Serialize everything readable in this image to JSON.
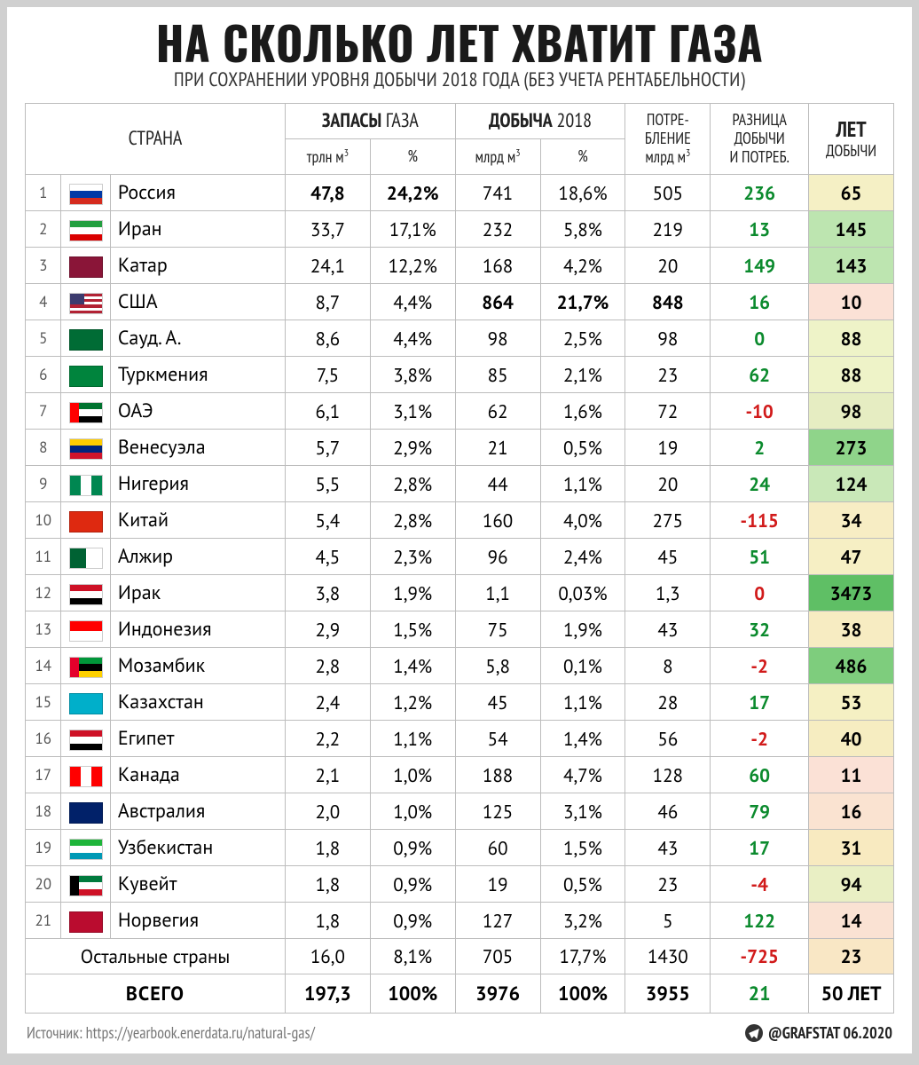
{
  "title": "НА СКОЛЬКО ЛЕТ ХВАТИТ ГАЗА",
  "subtitle": "ПРИ СОХРАНЕНИИ УРОВНЯ ДОБЫЧИ 2018 ГОДА (БЕЗ УЧЕТА РЕНТАБЕЛЬНОСТИ)",
  "header": {
    "country": "СТРАНА",
    "reserves_group": "ЗАПАСЫ",
    "reserves_group_sub": " ГАЗА",
    "reserves_vol": "трлн м",
    "reserves_pct": "%",
    "production_group": "ДОБЫЧА",
    "production_group_sub": " 2018",
    "production_vol": "млрд м",
    "production_pct": "%",
    "consumption_top": "ПОТРЕ-",
    "consumption_mid": "БЛЕНИЕ",
    "consumption_unit": "млрд м",
    "diff_top": "РАЗНИЦА",
    "diff_mid": "ДОБЫЧИ",
    "diff_bot": "И ПОТРЕБ.",
    "years_top": "ЛЕТ",
    "years_bot": "ДОБЫЧИ"
  },
  "rows": [
    {
      "n": "1",
      "country": "Россия",
      "flag": [
        "#ffffff",
        "#0039a6",
        "#d52b1e"
      ],
      "reserves": "47,8",
      "reserves_b": true,
      "reserves_pct": "24,2%",
      "reserves_pct_b": true,
      "prod": "741",
      "prod_pct": "18,6%",
      "cons": "505",
      "diff": "236",
      "diff_sign": "pos",
      "years": "65",
      "years_bg": "#f5f0c5"
    },
    {
      "n": "2",
      "country": "Иран",
      "flag": [
        "#239f40",
        "#ffffff",
        "#da0000"
      ],
      "reserves": "33,7",
      "reserves_pct": "17,1%",
      "prod": "232",
      "prod_pct": "5,8%",
      "cons": "219",
      "diff": "13",
      "diff_sign": "pos",
      "years": "145",
      "years_bg": "#bde5b0"
    },
    {
      "n": "3",
      "country": "Катар",
      "flag_solid": "#8a1538",
      "reserves": "24,1",
      "reserves_pct": "12,2%",
      "prod": "168",
      "prod_pct": "4,2%",
      "cons": "20",
      "diff": "149",
      "diff_sign": "pos",
      "years": "143",
      "years_bg": "#bde5b0"
    },
    {
      "n": "4",
      "country": "США",
      "flag_stripes": "us",
      "reserves": "8,7",
      "reserves_pct": "4,4%",
      "prod": "864",
      "prod_b": true,
      "prod_pct": "21,7%",
      "prod_pct_b": true,
      "cons": "848",
      "cons_b": true,
      "diff": "16",
      "diff_sign": "pos",
      "years": "10",
      "years_bg": "#fbe1d6"
    },
    {
      "n": "5",
      "country": "Сауд. А.",
      "flag_solid": "#006c35",
      "reserves": "8,6",
      "reserves_pct": "4,4%",
      "prod": "98",
      "prod_pct": "2,5%",
      "cons": "98",
      "diff": "0",
      "diff_sign": "pos",
      "years": "88",
      "years_bg": "#eef3c8"
    },
    {
      "n": "6",
      "country": "Туркмения",
      "flag_solid": "#00843d",
      "reserves": "7,5",
      "reserves_pct": "3,8%",
      "prod": "85",
      "prod_pct": "2,1%",
      "cons": "23",
      "diff": "62",
      "diff_sign": "pos",
      "years": "88",
      "years_bg": "#eef3c8"
    },
    {
      "n": "7",
      "country": "ОАЭ",
      "flag": [
        "#00732f",
        "#ffffff",
        "#000000"
      ],
      "flag_left": "#ff0000",
      "reserves": "6,1",
      "reserves_pct": "3,1%",
      "prod": "62",
      "prod_pct": "1,6%",
      "cons": "72",
      "diff": "-10",
      "diff_sign": "neg",
      "years": "98",
      "years_bg": "#e6edc2"
    },
    {
      "n": "8",
      "country": "Венесуэла",
      "flag": [
        "#ffcc00",
        "#00247d",
        "#cf142b"
      ],
      "reserves": "5,7",
      "reserves_pct": "2,9%",
      "prod": "21",
      "prod_pct": "0,5%",
      "cons": "19",
      "diff": "2",
      "diff_sign": "pos",
      "years": "273",
      "years_bg": "#8fd48a"
    },
    {
      "n": "9",
      "country": "Нигерия",
      "flag_v": [
        "#008751",
        "#ffffff",
        "#008751"
      ],
      "reserves": "5,5",
      "reserves_pct": "2,8%",
      "prod": "44",
      "prod_pct": "1,1%",
      "cons": "20",
      "diff": "24",
      "diff_sign": "pos",
      "years": "124",
      "years_bg": "#c9e8b8"
    },
    {
      "n": "10",
      "country": "Китай",
      "flag_solid": "#de2910",
      "reserves": "5,4",
      "reserves_pct": "2,8%",
      "prod": "160",
      "prod_pct": "4,0%",
      "cons": "275",
      "diff": "-115",
      "diff_sign": "neg",
      "years": "34",
      "years_bg": "#f7edc4"
    },
    {
      "n": "11",
      "country": "Алжир",
      "flag_v": [
        "#006233",
        "#ffffff"
      ],
      "reserves": "4,5",
      "reserves_pct": "2,3%",
      "prod": "96",
      "prod_pct": "2,4%",
      "cons": "45",
      "diff": "51",
      "diff_sign": "pos",
      "years": "47",
      "years_bg": "#f6efc4"
    },
    {
      "n": "12",
      "country": "Ирак",
      "flag": [
        "#ce1126",
        "#ffffff",
        "#000000"
      ],
      "reserves": "3,8",
      "reserves_pct": "1,9%",
      "prod": "1,1",
      "prod_pct": "0,03%",
      "cons": "1,3",
      "diff": "0",
      "diff_sign": "neg",
      "years": "3473",
      "years_bg": "#5fbf65"
    },
    {
      "n": "13",
      "country": "Индонезия",
      "flag": [
        "#ff0000",
        "#ffffff"
      ],
      "reserves": "2,9",
      "reserves_pct": "1,5%",
      "prod": "75",
      "prod_pct": "1,9%",
      "cons": "43",
      "diff": "32",
      "diff_sign": "pos",
      "years": "38",
      "years_bg": "#f7ecc2"
    },
    {
      "n": "14",
      "country": "Мозамбик",
      "flag": [
        "#009639",
        "#000000",
        "#ffd100"
      ],
      "flag_left": "#e4002b",
      "reserves": "2,8",
      "reserves_pct": "1,4%",
      "prod": "5,8",
      "prod_pct": "0,1%",
      "cons": "8",
      "diff": "-2",
      "diff_sign": "neg",
      "years": "486",
      "years_bg": "#7ecd7d"
    },
    {
      "n": "15",
      "country": "Казахстан",
      "flag_solid": "#00afca",
      "reserves": "2,4",
      "reserves_pct": "1,2%",
      "prod": "45",
      "prod_pct": "1,1%",
      "cons": "28",
      "diff": "17",
      "diff_sign": "pos",
      "years": "53",
      "years_bg": "#f5f0c3"
    },
    {
      "n": "16",
      "country": "Египет",
      "flag": [
        "#ce1126",
        "#ffffff",
        "#000000"
      ],
      "reserves": "2,2",
      "reserves_pct": "1,1%",
      "prod": "54",
      "prod_pct": "1,4%",
      "cons": "56",
      "diff": "-2",
      "diff_sign": "neg",
      "years": "40",
      "years_bg": "#f6edc1"
    },
    {
      "n": "17",
      "country": "Канада",
      "flag_v": [
        "#ff0000",
        "#ffffff",
        "#ff0000"
      ],
      "reserves": "2,1",
      "reserves_pct": "1,0%",
      "prod": "188",
      "prod_pct": "4,7%",
      "cons": "128",
      "diff": "60",
      "diff_sign": "pos",
      "years": "11",
      "years_bg": "#fbe1d6"
    },
    {
      "n": "18",
      "country": "Австралия",
      "flag_solid": "#012169",
      "reserves": "2,0",
      "reserves_pct": "1,0%",
      "prod": "125",
      "prod_pct": "3,1%",
      "cons": "46",
      "diff": "79",
      "diff_sign": "pos",
      "years": "16",
      "years_bg": "#fae3d1"
    },
    {
      "n": "19",
      "country": "Узбекистан",
      "flag": [
        "#1eb53a",
        "#ffffff",
        "#0099b5"
      ],
      "reserves": "1,8",
      "reserves_pct": "0,9%",
      "prod": "60",
      "prod_pct": "1,5%",
      "cons": "43",
      "diff": "17",
      "diff_sign": "pos",
      "years": "31",
      "years_bg": "#f8eac0"
    },
    {
      "n": "20",
      "country": "Кувейт",
      "flag": [
        "#007a3d",
        "#ffffff",
        "#ce1126"
      ],
      "flag_left": "#000000",
      "reserves": "1,8",
      "reserves_pct": "0,9%",
      "prod": "19",
      "prod_pct": "0,5%",
      "cons": "23",
      "diff": "-4",
      "diff_sign": "neg",
      "years": "94",
      "years_bg": "#e9efc4"
    },
    {
      "n": "21",
      "country": "Норвегия",
      "flag_solid": "#ba0c2f",
      "reserves": "1,8",
      "reserves_pct": "0,9%",
      "prod": "127",
      "prod_pct": "3,2%",
      "cons": "5",
      "diff": "122",
      "diff_sign": "pos",
      "years": "14",
      "years_bg": "#fae2d3"
    }
  ],
  "others": {
    "label": "Остальные страны",
    "reserves": "16,0",
    "reserves_pct": "8,1%",
    "prod": "705",
    "prod_pct": "17,7%",
    "cons": "1430",
    "diff": "-725",
    "diff_sign": "neg",
    "years": "23",
    "years_bg": "#f9e7c5"
  },
  "totals": {
    "label": "ВСЕГО",
    "reserves": "197,3",
    "reserves_pct": "100%",
    "prod": "3976",
    "prod_pct": "100%",
    "cons": "3955",
    "diff": "21",
    "diff_sign": "pos",
    "years": "50 ЛЕТ"
  },
  "source_label": "Источник: https://yearbook.enerdata.ru/natural-gas/",
  "credit": "@GRAFSTAT 06.2020",
  "colors": {
    "border": "#bdbdbd",
    "pos": "#0b8a2d",
    "neg": "#d11a1a"
  }
}
